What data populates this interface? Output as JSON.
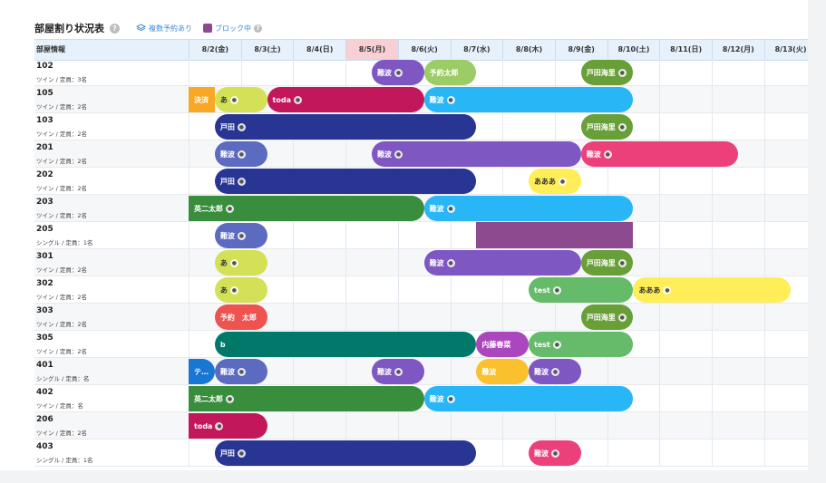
{
  "header": {
    "title": "部屋割り状況表",
    "legend_multi": "複数予約あり",
    "legend_block": "ブロック中"
  },
  "columns": {
    "info_label": "部屋情報",
    "dates": [
      "8/2(金)",
      "8/3(土)",
      "8/4(日)",
      "8/5(月)",
      "8/6(火)",
      "8/7(水)",
      "8/8(木)",
      "8/9(金)",
      "8/10(土)",
      "8/11(日)",
      "8/12(月)",
      "8/13(火)"
    ],
    "highlight_index": 3
  },
  "rooms": [
    {
      "no": "102",
      "type": "ツイン / 定員：3名"
    },
    {
      "no": "105",
      "type": "ツイン / 定員：2名"
    },
    {
      "no": "103",
      "type": "ツイン / 定員：2名"
    },
    {
      "no": "201",
      "type": "ツイン / 定員：2名"
    },
    {
      "no": "202",
      "type": "ツイン / 定員：2名"
    },
    {
      "no": "203",
      "type": "ツイン / 定員：2名"
    },
    {
      "no": "205",
      "type": "シングル / 定員：1名"
    },
    {
      "no": "301",
      "type": "ツイン / 定員：2名"
    },
    {
      "no": "302",
      "type": "ツイン / 定員：2名"
    },
    {
      "no": "303",
      "type": "ツイン / 定員：2名"
    },
    {
      "no": "305",
      "type": "ツイン / 定員：2名"
    },
    {
      "no": "401",
      "type": "シングル / 定員：名"
    },
    {
      "no": "402",
      "type": "ツイン / 定員：名"
    },
    {
      "no": "206",
      "type": "ツイン / 定員：2名"
    },
    {
      "no": "403",
      "type": "シングル / 定員：1名"
    }
  ],
  "bookings": [
    {
      "row": 0,
      "start": 3.5,
      "end": 4.5,
      "label": "難波",
      "color": "#7e57c2",
      "person": true
    },
    {
      "row": 0,
      "start": 4.5,
      "end": 5.5,
      "label": "予約太郎",
      "color": "#9ccc65",
      "person": false
    },
    {
      "row": 0,
      "start": 7.5,
      "end": 8.5,
      "label": "戸田海里",
      "color": "#689f38",
      "person": true
    },
    {
      "row": 1,
      "start": 0,
      "end": 0.5,
      "label": "決済",
      "color": "#f9a825",
      "person": false,
      "square": "all"
    },
    {
      "row": 1,
      "start": 0.5,
      "end": 1.5,
      "label": "あ",
      "color": "#d4e157",
      "person": true,
      "dark": true
    },
    {
      "row": 1,
      "start": 1.5,
      "end": 4.5,
      "label": "toda",
      "color": "#c2185b",
      "person": true
    },
    {
      "row": 1,
      "start": 4.5,
      "end": 8.5,
      "label": "難波",
      "color": "#29b6f6",
      "person": true
    },
    {
      "row": 2,
      "start": 0.5,
      "end": 5.5,
      "label": "戸田",
      "color": "#283593",
      "person": true
    },
    {
      "row": 2,
      "start": 7.5,
      "end": 8.5,
      "label": "戸田海里",
      "color": "#689f38",
      "person": true
    },
    {
      "row": 3,
      "start": 0.5,
      "end": 1.5,
      "label": "難波",
      "color": "#5c6bc0",
      "person": true
    },
    {
      "row": 3,
      "start": 3.5,
      "end": 7.5,
      "label": "難波",
      "color": "#7e57c2",
      "person": true
    },
    {
      "row": 3,
      "start": 7.5,
      "end": 10.5,
      "label": "難波",
      "color": "#ec407a",
      "person": true
    },
    {
      "row": 4,
      "start": 0.5,
      "end": 5.5,
      "label": "戸田",
      "color": "#283593",
      "person": true
    },
    {
      "row": 4,
      "start": 6.5,
      "end": 7.5,
      "label": "あああ",
      "color": "#ffee58",
      "person": true,
      "dark": true
    },
    {
      "row": 5,
      "start": 0,
      "end": 4.5,
      "label": "英二太郎",
      "color": "#388e3c",
      "person": true,
      "square": "left"
    },
    {
      "row": 5,
      "start": 4.5,
      "end": 8.5,
      "label": "難波",
      "color": "#29b6f6",
      "person": true
    },
    {
      "row": 6,
      "start": 0.5,
      "end": 1.5,
      "label": "難波",
      "color": "#5c6bc0",
      "person": true
    },
    {
      "row": 7,
      "start": 0.5,
      "end": 1.5,
      "label": "あ",
      "color": "#d4e157",
      "person": true,
      "dark": true
    },
    {
      "row": 7,
      "start": 4.5,
      "end": 7.5,
      "label": "難波",
      "color": "#7e57c2",
      "person": true
    },
    {
      "row": 7,
      "start": 7.5,
      "end": 8.5,
      "label": "戸田海里",
      "color": "#689f38",
      "person": true
    },
    {
      "row": 8,
      "start": 0.5,
      "end": 1.5,
      "label": "あ",
      "color": "#d4e157",
      "person": true,
      "dark": true
    },
    {
      "row": 8,
      "start": 6.5,
      "end": 8.5,
      "label": "test",
      "color": "#66bb6a",
      "person": true
    },
    {
      "row": 8,
      "start": 8.5,
      "end": 11.5,
      "label": "あああ",
      "color": "#ffee58",
      "person": true,
      "dark": true
    },
    {
      "row": 9,
      "start": 0.5,
      "end": 1.5,
      "label": "予約　太郎",
      "color": "#ef5350",
      "person": false
    },
    {
      "row": 9,
      "start": 7.5,
      "end": 8.5,
      "label": "戸田海里",
      "color": "#689f38",
      "person": true
    },
    {
      "row": 10,
      "start": 0.5,
      "end": 5.5,
      "label": "b",
      "color": "#00796b",
      "person": false
    },
    {
      "row": 10,
      "start": 5.5,
      "end": 6.5,
      "label": "内藤春菜",
      "color": "#ab47bc",
      "person": false
    },
    {
      "row": 10,
      "start": 6.5,
      "end": 8.5,
      "label": "test",
      "color": "#66bb6a",
      "person": true
    },
    {
      "row": 11,
      "start": 0,
      "end": 0.5,
      "label": "テ…",
      "color": "#1976d2",
      "person": false,
      "square": "left"
    },
    {
      "row": 11,
      "start": 0.5,
      "end": 1.5,
      "label": "難波",
      "color": "#5c6bc0",
      "person": true
    },
    {
      "row": 11,
      "start": 3.5,
      "end": 4.5,
      "label": "難波",
      "color": "#7e57c2",
      "person": true
    },
    {
      "row": 11,
      "start": 5.5,
      "end": 6.5,
      "label": "難波",
      "color": "#fbc02d",
      "person": false
    },
    {
      "row": 11,
      "start": 6.5,
      "end": 7.5,
      "label": "難波",
      "color": "#7e57c2",
      "person": true
    },
    {
      "row": 12,
      "start": 0,
      "end": 4.5,
      "label": "英二太郎",
      "color": "#388e3c",
      "person": true,
      "square": "left"
    },
    {
      "row": 12,
      "start": 4.5,
      "end": 8.5,
      "label": "難波",
      "color": "#29b6f6",
      "person": true
    },
    {
      "row": 13,
      "start": 0,
      "end": 1.5,
      "label": "toda",
      "color": "#c2185b",
      "person": true,
      "square": "left"
    },
    {
      "row": 14,
      "start": 0.5,
      "end": 5.5,
      "label": "戸田",
      "color": "#283593",
      "person": true
    },
    {
      "row": 14,
      "start": 6.5,
      "end": 7.5,
      "label": "難波",
      "color": "#ec407a",
      "person": true
    }
  ],
  "blocked": [
    {
      "row": 6,
      "start": 5.5,
      "end": 8.5
    }
  ]
}
